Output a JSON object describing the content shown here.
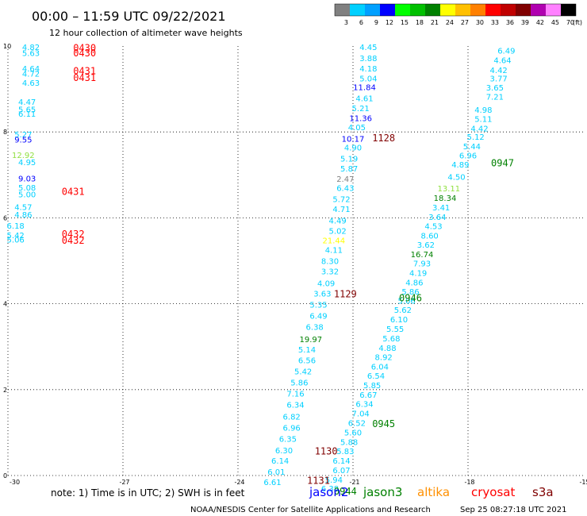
{
  "header": {
    "title": "00:00 – 11:59 UTC 09/22/2021",
    "subtitle": "12 hour collection of altimeter wave heights"
  },
  "colorbar": {
    "labels": [
      "3",
      "6",
      "9",
      "12",
      "15",
      "18",
      "21",
      "24",
      "27",
      "30",
      "33",
      "36",
      "39",
      "42",
      "45",
      "70"
    ],
    "unit": "(ft)",
    "colors": [
      "#808080",
      "#00d0ff",
      "#00a0ff",
      "#0000ff",
      "#00ff00",
      "#00c000",
      "#008000",
      "#ffff00",
      "#ffc000",
      "#ff8000",
      "#ff0000",
      "#c00000",
      "#800000",
      "#b000b0",
      "#ff80ff",
      "#000000"
    ]
  },
  "footer": {
    "note": "note:  1) Time is in UTC; 2) SWH is in feet",
    "credit": "NOAA/NESDIS Center for Satellite Applications and Research",
    "timestamp": "Sep 25 08:27:18 UTC 2021",
    "satellites": [
      {
        "name": "jason2",
        "color": "#0000ff"
      },
      {
        "name": "jason3",
        "color": "#008000"
      },
      {
        "name": "altika",
        "color": "#ff9000"
      },
      {
        "name": "cryosat",
        "color": "#ff0000"
      },
      {
        "name": "s3a",
        "color": "#800000"
      }
    ]
  },
  "chart_data": {
    "type": "scatter",
    "title": "00:00 – 11:59 UTC 09/22/2021",
    "subtitle": "12 hour collection of altimeter wave heights",
    "xlim": [
      -30,
      -15
    ],
    "ylim": [
      0,
      10
    ],
    "xticks": [
      "-30",
      "-27",
      "-24",
      "-21",
      "-18",
      "-15"
    ],
    "yticks": [
      "0",
      "2",
      "4",
      "6",
      "8",
      "10"
    ],
    "grid": true,
    "labels": [
      {
        "x": -29.4,
        "y": 9.98,
        "v": "4.82",
        "c": "#00d0ff"
      },
      {
        "x": -29.4,
        "y": 9.84,
        "v": "5.63",
        "c": "#00d0ff"
      },
      {
        "x": -29.4,
        "y": 9.48,
        "v": "4.64",
        "c": "#00d0ff"
      },
      {
        "x": -29.4,
        "y": 9.36,
        "v": "4.72",
        "c": "#00d0ff"
      },
      {
        "x": -29.4,
        "y": 9.15,
        "v": "4.63",
        "c": "#00d0ff"
      },
      {
        "x": -29.5,
        "y": 8.71,
        "v": "4.47",
        "c": "#00d0ff"
      },
      {
        "x": -29.5,
        "y": 8.53,
        "v": "5.65",
        "c": "#00d0ff"
      },
      {
        "x": -29.5,
        "y": 8.43,
        "v": "6.11",
        "c": "#00d0ff"
      },
      {
        "x": -29.6,
        "y": 7.95,
        "v": "5.27",
        "c": "#00d0ff"
      },
      {
        "x": -29.6,
        "y": 7.83,
        "v": "9.55",
        "c": "#0000ff"
      },
      {
        "x": -29.6,
        "y": 7.47,
        "v": "12.92",
        "c": "#90e040"
      },
      {
        "x": -29.5,
        "y": 7.3,
        "v": "4.95",
        "c": "#00d0ff"
      },
      {
        "x": -29.5,
        "y": 6.92,
        "v": "9.03",
        "c": "#0000ff"
      },
      {
        "x": -29.5,
        "y": 6.71,
        "v": "5.08",
        "c": "#00d0ff"
      },
      {
        "x": -29.5,
        "y": 6.55,
        "v": "5.00",
        "c": "#00d0ff"
      },
      {
        "x": -29.6,
        "y": 6.26,
        "v": "4.57",
        "c": "#00d0ff"
      },
      {
        "x": -29.6,
        "y": 6.08,
        "v": "4.86",
        "c": "#00d0ff"
      },
      {
        "x": -29.8,
        "y": 5.82,
        "v": "6.18",
        "c": "#00d0ff"
      },
      {
        "x": -29.8,
        "y": 5.6,
        "v": "5.42",
        "c": "#00d0ff"
      },
      {
        "x": -29.8,
        "y": 5.5,
        "v": "5.06",
        "c": "#00d0ff"
      },
      {
        "x": -20.6,
        "y": 9.98,
        "v": "4.45",
        "c": "#00d0ff"
      },
      {
        "x": -20.6,
        "y": 9.72,
        "v": "3.88",
        "c": "#00d0ff"
      },
      {
        "x": -20.6,
        "y": 9.48,
        "v": "4.18",
        "c": "#00d0ff"
      },
      {
        "x": -20.6,
        "y": 9.25,
        "v": "5.04",
        "c": "#00d0ff"
      },
      {
        "x": -20.7,
        "y": 9.05,
        "v": "11.84",
        "c": "#0000ff"
      },
      {
        "x": -20.7,
        "y": 8.79,
        "v": "4.61",
        "c": "#00d0ff"
      },
      {
        "x": -20.8,
        "y": 8.56,
        "v": "5.21",
        "c": "#00d0ff"
      },
      {
        "x": -20.8,
        "y": 8.33,
        "v": "11.36",
        "c": "#0000ff"
      },
      {
        "x": -20.9,
        "y": 8.11,
        "v": "4.05",
        "c": "#00d0ff"
      },
      {
        "x": -21.0,
        "y": 7.85,
        "v": "10.17",
        "c": "#0000ff"
      },
      {
        "x": -21.0,
        "y": 7.64,
        "v": "4.90",
        "c": "#00d0ff"
      },
      {
        "x": -21.1,
        "y": 7.38,
        "v": "5.19",
        "c": "#00d0ff"
      },
      {
        "x": -21.1,
        "y": 7.15,
        "v": "5.87",
        "c": "#00d0ff"
      },
      {
        "x": -21.2,
        "y": 6.91,
        "v": "2.47",
        "c": "#808080"
      },
      {
        "x": -21.2,
        "y": 6.7,
        "v": "6.43",
        "c": "#00d0ff"
      },
      {
        "x": -21.3,
        "y": 6.44,
        "v": "5.72",
        "c": "#00d0ff"
      },
      {
        "x": -21.3,
        "y": 6.21,
        "v": "4.71",
        "c": "#00d0ff"
      },
      {
        "x": -21.4,
        "y": 5.94,
        "v": "4.49",
        "c": "#00d0ff"
      },
      {
        "x": -21.4,
        "y": 5.7,
        "v": "5.02",
        "c": "#00d0ff"
      },
      {
        "x": -21.5,
        "y": 5.48,
        "v": "21.44",
        "c": "#ffff00"
      },
      {
        "x": -21.5,
        "y": 5.26,
        "v": "4.11",
        "c": "#00d0ff"
      },
      {
        "x": -21.6,
        "y": 5.0,
        "v": "8.30",
        "c": "#00d0ff"
      },
      {
        "x": -21.6,
        "y": 4.76,
        "v": "3.32",
        "c": "#00d0ff"
      },
      {
        "x": -21.7,
        "y": 4.48,
        "v": "4.09",
        "c": "#00d0ff"
      },
      {
        "x": -21.8,
        "y": 4.24,
        "v": "3.63",
        "c": "#00d0ff"
      },
      {
        "x": -21.9,
        "y": 3.98,
        "v": "5.35",
        "c": "#00d0ff"
      },
      {
        "x": -21.9,
        "y": 3.72,
        "v": "6.49",
        "c": "#00d0ff"
      },
      {
        "x": -22.0,
        "y": 3.47,
        "v": "6.38",
        "c": "#00d0ff"
      },
      {
        "x": -22.1,
        "y": 3.18,
        "v": "19.97",
        "c": "#008000"
      },
      {
        "x": -22.2,
        "y": 2.94,
        "v": "5.14",
        "c": "#00d0ff"
      },
      {
        "x": -22.2,
        "y": 2.69,
        "v": "6.56",
        "c": "#00d0ff"
      },
      {
        "x": -22.3,
        "y": 2.43,
        "v": "5.42",
        "c": "#00d0ff"
      },
      {
        "x": -22.4,
        "y": 2.17,
        "v": "5.86",
        "c": "#00d0ff"
      },
      {
        "x": -22.5,
        "y": 1.91,
        "v": "7.16",
        "c": "#00d0ff"
      },
      {
        "x": -22.5,
        "y": 1.65,
        "v": "6.34",
        "c": "#00d0ff"
      },
      {
        "x": -22.6,
        "y": 1.38,
        "v": "6.82",
        "c": "#00d0ff"
      },
      {
        "x": -22.6,
        "y": 1.12,
        "v": "6.96",
        "c": "#00d0ff"
      },
      {
        "x": -22.7,
        "y": 0.86,
        "v": "6.35",
        "c": "#00d0ff"
      },
      {
        "x": -22.8,
        "y": 0.59,
        "v": "6.30",
        "c": "#00d0ff"
      },
      {
        "x": -22.9,
        "y": 0.35,
        "v": "6.14",
        "c": "#00d0ff"
      },
      {
        "x": -23.0,
        "y": 0.09,
        "v": "6.01",
        "c": "#00d0ff"
      },
      {
        "x": -23.1,
        "y": -0.15,
        "v": "6.61",
        "c": "#00d0ff"
      },
      {
        "x": -17.0,
        "y": 9.9,
        "v": "6.49",
        "c": "#00d0ff"
      },
      {
        "x": -17.1,
        "y": 9.68,
        "v": "4.64",
        "c": "#00d0ff"
      },
      {
        "x": -17.2,
        "y": 9.45,
        "v": "4.42",
        "c": "#00d0ff"
      },
      {
        "x": -17.2,
        "y": 9.25,
        "v": "3.77",
        "c": "#00d0ff"
      },
      {
        "x": -17.3,
        "y": 9.04,
        "v": "3.65",
        "c": "#00d0ff"
      },
      {
        "x": -17.3,
        "y": 8.83,
        "v": "7.21",
        "c": "#00d0ff"
      },
      {
        "x": -17.6,
        "y": 8.52,
        "v": "4.98",
        "c": "#00d0ff"
      },
      {
        "x": -17.6,
        "y": 8.31,
        "v": "5.11",
        "c": "#00d0ff"
      },
      {
        "x": -17.7,
        "y": 8.09,
        "v": "4.42",
        "c": "#00d0ff"
      },
      {
        "x": -17.8,
        "y": 7.89,
        "v": "5.12",
        "c": "#00d0ff"
      },
      {
        "x": -17.9,
        "y": 7.67,
        "v": "5.44",
        "c": "#00d0ff"
      },
      {
        "x": -18.0,
        "y": 7.46,
        "v": "6.96",
        "c": "#00d0ff"
      },
      {
        "x": -18.2,
        "y": 7.25,
        "v": "4.89",
        "c": "#00d0ff"
      },
      {
        "x": -18.3,
        "y": 6.96,
        "v": "4.50",
        "c": "#00d0ff"
      },
      {
        "x": -18.5,
        "y": 6.69,
        "v": "13.11",
        "c": "#90e040"
      },
      {
        "x": -18.6,
        "y": 6.47,
        "v": "18.34",
        "c": "#008000"
      },
      {
        "x": -18.7,
        "y": 6.25,
        "v": "3.41",
        "c": "#00d0ff"
      },
      {
        "x": -18.8,
        "y": 6.03,
        "v": "3.64",
        "c": "#00d0ff"
      },
      {
        "x": -18.9,
        "y": 5.81,
        "v": "4.53",
        "c": "#00d0ff"
      },
      {
        "x": -19.0,
        "y": 5.59,
        "v": "8.60",
        "c": "#00d0ff"
      },
      {
        "x": -19.1,
        "y": 5.38,
        "v": "3.62",
        "c": "#00d0ff"
      },
      {
        "x": -19.2,
        "y": 5.16,
        "v": "16.74",
        "c": "#008000"
      },
      {
        "x": -19.2,
        "y": 4.94,
        "v": "7.93",
        "c": "#00d0ff"
      },
      {
        "x": -19.3,
        "y": 4.72,
        "v": "4.19",
        "c": "#00d0ff"
      },
      {
        "x": -19.4,
        "y": 4.5,
        "v": "4.86",
        "c": "#00d0ff"
      },
      {
        "x": -19.5,
        "y": 4.29,
        "v": "5.86",
        "c": "#00d0ff"
      },
      {
        "x": -19.6,
        "y": 4.08,
        "v": "5.06",
        "c": "#00d0ff"
      },
      {
        "x": -19.7,
        "y": 3.86,
        "v": "5.62",
        "c": "#00d0ff"
      },
      {
        "x": -19.8,
        "y": 3.64,
        "v": "6.10",
        "c": "#00d0ff"
      },
      {
        "x": -19.9,
        "y": 3.42,
        "v": "5.55",
        "c": "#00d0ff"
      },
      {
        "x": -20.0,
        "y": 3.2,
        "v": "5.68",
        "c": "#00d0ff"
      },
      {
        "x": -20.1,
        "y": 2.98,
        "v": "4.88",
        "c": "#00d0ff"
      },
      {
        "x": -20.2,
        "y": 2.76,
        "v": "8.92",
        "c": "#00d0ff"
      },
      {
        "x": -20.3,
        "y": 2.54,
        "v": "6.04",
        "c": "#00d0ff"
      },
      {
        "x": -20.4,
        "y": 2.33,
        "v": "6.54",
        "c": "#00d0ff"
      },
      {
        "x": -20.5,
        "y": 2.11,
        "v": "5.85",
        "c": "#00d0ff"
      },
      {
        "x": -20.6,
        "y": 1.89,
        "v": "6.67",
        "c": "#00d0ff"
      },
      {
        "x": -20.7,
        "y": 1.67,
        "v": "6.34",
        "c": "#00d0ff"
      },
      {
        "x": -20.8,
        "y": 1.45,
        "v": "7.04",
        "c": "#00d0ff"
      },
      {
        "x": -20.9,
        "y": 1.23,
        "v": "6.52",
        "c": "#00d0ff"
      },
      {
        "x": -21.0,
        "y": 1.01,
        "v": "5.60",
        "c": "#00d0ff"
      },
      {
        "x": -21.1,
        "y": 0.79,
        "v": "5.88",
        "c": "#00d0ff"
      },
      {
        "x": -21.2,
        "y": 0.57,
        "v": "5.83",
        "c": "#00d0ff"
      },
      {
        "x": -21.3,
        "y": 0.35,
        "v": "6.14",
        "c": "#00d0ff"
      },
      {
        "x": -21.3,
        "y": 0.13,
        "v": "6.07",
        "c": "#00d0ff"
      },
      {
        "x": -21.5,
        "y": -0.09,
        "v": "5.94",
        "c": "#00d0ff"
      },
      {
        "x": -21.6,
        "y": -0.3,
        "v": "6.38",
        "c": "#00d0ff"
      }
    ],
    "times": [
      {
        "x": -28.0,
        "y": 9.95,
        "t": "0430",
        "c": "#ff0000"
      },
      {
        "x": -28.0,
        "y": 9.83,
        "t": "0430",
        "c": "#ff0000"
      },
      {
        "x": -28.0,
        "y": 9.42,
        "t": "0431",
        "c": "#ff0000"
      },
      {
        "x": -28.0,
        "y": 9.26,
        "t": "0431",
        "c": "#ff0000"
      },
      {
        "x": -28.3,
        "y": 6.61,
        "t": "0431",
        "c": "#ff0000"
      },
      {
        "x": -28.3,
        "y": 5.62,
        "t": "0432",
        "c": "#ff0000"
      },
      {
        "x": -28.3,
        "y": 5.47,
        "t": "0432",
        "c": "#ff0000"
      },
      {
        "x": -20.2,
        "y": 7.86,
        "t": "1128",
        "c": "#800000"
      },
      {
        "x": -17.1,
        "y": 7.27,
        "t": "0947",
        "c": "#008000"
      },
      {
        "x": -21.2,
        "y": 4.22,
        "t": "1129",
        "c": "#800000"
      },
      {
        "x": -19.5,
        "y": 4.13,
        "t": "0946",
        "c": "#008000"
      },
      {
        "x": -20.2,
        "y": 1.2,
        "t": "0945",
        "c": "#008000"
      },
      {
        "x": -21.7,
        "y": 0.56,
        "t": "1130",
        "c": "#800000"
      },
      {
        "x": -21.9,
        "y": -0.12,
        "t": "1131",
        "c": "#800000"
      },
      {
        "x": -21.2,
        "y": -0.37,
        "t": "0944",
        "c": "#008000"
      }
    ]
  }
}
